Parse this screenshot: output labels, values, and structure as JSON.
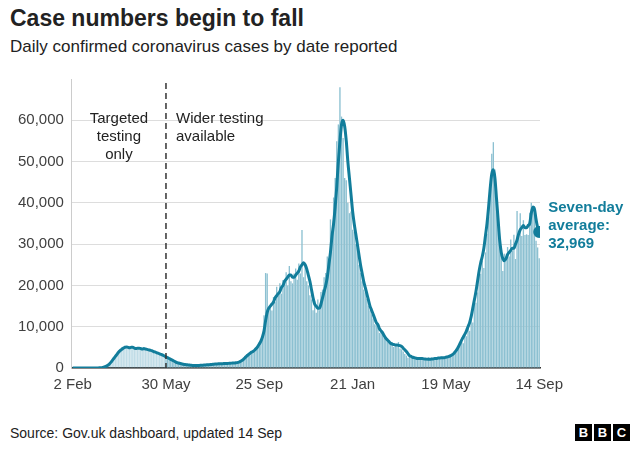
{
  "chart_data": {
    "type": "bar",
    "title": "Case numbers begin to fall",
    "subtitle": "Daily confirmed coronavirus cases by date reported",
    "source": "Source: Gov.uk dashboard, updated 14 Sep",
    "logo": "BBC",
    "categories": [
      "2 Feb",
      null,
      null,
      null,
      null,
      null,
      null,
      null,
      null,
      null,
      null,
      null,
      null,
      null,
      null,
      null,
      null,
      null,
      null,
      null,
      null,
      null,
      null,
      null,
      null,
      null,
      null,
      null,
      null,
      null,
      null,
      null,
      null,
      null,
      null,
      null,
      null,
      null,
      null,
      null,
      null,
      null,
      null,
      null,
      null,
      null,
      null,
      null,
      null,
      null,
      null,
      null,
      null,
      null,
      null,
      null,
      null,
      null,
      null,
      "30 May",
      null,
      null,
      null,
      null,
      null,
      null,
      null,
      null,
      null,
      null,
      null,
      null,
      null,
      null,
      null,
      null,
      null,
      null,
      null,
      null,
      null,
      null,
      null,
      null,
      null,
      null,
      null,
      null,
      null,
      null,
      null,
      null,
      null,
      null,
      null,
      null,
      null,
      null,
      null,
      null,
      null,
      null,
      null,
      null,
      null,
      null,
      null,
      null,
      null,
      null,
      null,
      null,
      null,
      null,
      null,
      null,
      null,
      null,
      "25 Sep",
      null,
      null,
      null,
      null,
      null,
      null,
      null,
      null,
      null,
      null,
      null,
      null,
      null,
      null,
      null,
      null,
      null,
      null,
      null,
      null,
      null,
      null,
      null,
      null,
      null,
      null,
      null,
      null,
      null,
      null,
      null,
      null,
      null,
      null,
      null,
      null,
      null,
      null,
      null,
      null,
      null,
      null,
      null,
      null,
      null,
      null,
      null,
      null,
      null,
      null,
      null,
      null,
      null,
      null,
      null,
      null,
      null,
      null,
      "21 Jan",
      null,
      null,
      null,
      null,
      null,
      null,
      null,
      null,
      null,
      null,
      null,
      null,
      null,
      null,
      null,
      null,
      null,
      null,
      null,
      null,
      null,
      null,
      null,
      null,
      null,
      null,
      null,
      null,
      null,
      null,
      null,
      null,
      null,
      null,
      null,
      null,
      null,
      null,
      null,
      null,
      null,
      null,
      null,
      null,
      null,
      null,
      null,
      null,
      null,
      null,
      null,
      null,
      null,
      null,
      null,
      null,
      null,
      null,
      "19 May",
      null,
      null,
      null,
      null,
      null,
      null,
      null,
      null,
      null,
      null,
      null,
      null,
      null,
      null,
      null,
      null,
      null,
      null,
      null,
      null,
      null,
      null,
      null,
      null,
      null,
      null,
      null,
      null,
      null,
      null,
      null,
      null,
      null,
      null,
      null,
      null,
      null,
      null,
      null,
      null,
      null,
      null,
      null,
      null,
      null,
      null,
      null,
      null,
      null,
      null,
      null,
      null,
      null,
      null,
      null,
      null,
      null,
      null,
      "14 Sep"
    ],
    "series": [
      {
        "type": "bar",
        "color": "#8cc0d1",
        "values": [
          0,
          0,
          0,
          0,
          0,
          0,
          0,
          0,
          0,
          0,
          0,
          0,
          0,
          0,
          0,
          10,
          30,
          50,
          70,
          200,
          300,
          450,
          700,
          1000,
          1500,
          2000,
          2600,
          3000,
          3700,
          4200,
          4500,
          5000,
          5200,
          5500,
          4900,
          5300,
          4700,
          5100,
          5200,
          4600,
          5000,
          4500,
          5100,
          4800,
          4500,
          4900,
          4400,
          4600,
          4300,
          4300,
          4000,
          4100,
          3700,
          3800,
          3500,
          3400,
          3200,
          3100,
          2800,
          2500,
          2600,
          2100,
          2200,
          1700,
          1800,
          1400,
          1300,
          1100,
          1200,
          900,
          1000,
          800,
          850,
          700,
          750,
          600,
          700,
          550,
          650,
          550,
          700,
          600,
          750,
          650,
          800,
          700,
          900,
          750,
          900,
          850,
          1050,
          900,
          1100,
          950,
          1150,
          1000,
          1200,
          1000,
          1200,
          1050,
          1250,
          1100,
          1300,
          1200,
          1400,
          1500,
          1900,
          2000,
          2500,
          2700,
          3300,
          3100,
          3900,
          3600,
          4300,
          4400,
          4900,
          5400,
          6200,
          7100,
          7000,
          12800,
          23000,
          22900,
          14000,
          15200,
          13900,
          17200,
          16000,
          19700,
          17500,
          20500,
          18000,
          21300,
          20900,
          23200,
          20000,
          24700,
          21000,
          20500,
          22900,
          24100,
          21400,
          25300,
          22900,
          33400,
          22000,
          25100,
          21000,
          20000,
          17600,
          16600,
          14000,
          16300,
          13400,
          16600,
          14000,
          18400,
          19000,
          22000,
          23000,
          27000,
          26500,
          36000,
          32700,
          41300,
          46000,
          54900,
          59000,
          68000,
          60900,
          55700,
          46000,
          45500,
          40000,
          37500,
          37900,
          33500,
          33000,
          30000,
          29000,
          25000,
          23000,
          21000,
          19000,
          18300,
          16800,
          15100,
          14000,
          13000,
          12000,
          10600,
          10400,
          9900,
          8500,
          9000,
          8100,
          7400,
          6900,
          6400,
          6000,
          5900,
          6300,
          5100,
          5800,
          5500,
          6300,
          4700,
          4500,
          4000,
          3400,
          3000,
          2500,
          3000,
          2400,
          2600,
          2300,
          2500,
          2100,
          2600,
          2000,
          2300,
          1900,
          2400,
          1700,
          2600,
          2000,
          2500,
          2100,
          2400,
          2200,
          2600,
          2300,
          2700,
          2400,
          2500,
          2900,
          2500,
          3100,
          2900,
          3400,
          3200,
          4200,
          4300,
          5300,
          5800,
          7400,
          6000,
          8100,
          7700,
          10300,
          9000,
          11600,
          11000,
          16100,
          15800,
          18300,
          22900,
          22800,
          26000,
          24200,
          28000,
          32500,
          36600,
          42300,
          51900,
          54700,
          48100,
          39900,
          36400,
          31100,
          29600,
          23500,
          27700,
          26700,
          29300,
          27000,
          31100,
          28400,
          32300,
          26400,
          38000,
          33000,
          37500,
          32000,
          35800,
          32200,
          32400,
          32200,
          37600,
          40000,
          38500,
          37400,
          30800,
          29200,
          26600
        ]
      },
      {
        "type": "line",
        "name": "Seven-day average:",
        "color": "#127d9b",
        "end_label": "32,969",
        "values": [
          0,
          0,
          0,
          0,
          0,
          0,
          0,
          0,
          0,
          0,
          0,
          0,
          0,
          0,
          0,
          10,
          20,
          40,
          80,
          150,
          250,
          400,
          600,
          900,
          1300,
          1800,
          2300,
          2800,
          3300,
          3800,
          4200,
          4500,
          4800,
          5000,
          5100,
          5000,
          4900,
          5000,
          5000,
          4800,
          4700,
          4800,
          4800,
          4700,
          4600,
          4700,
          4600,
          4500,
          4400,
          4300,
          4200,
          4000,
          3900,
          3700,
          3600,
          3400,
          3300,
          3100,
          2900,
          2700,
          2500,
          2300,
          2100,
          1900,
          1700,
          1500,
          1300,
          1200,
          1100,
          1000,
          900,
          850,
          800,
          750,
          700,
          650,
          630,
          620,
          600,
          600,
          620,
          650,
          680,
          700,
          750,
          780,
          800,
          820,
          850,
          900,
          950,
          950,
          1000,
          1000,
          1050,
          1050,
          1100,
          1100,
          1100,
          1150,
          1150,
          1200,
          1200,
          1250,
          1300,
          1400,
          1600,
          1800,
          2100,
          2500,
          2900,
          3200,
          3500,
          3800,
          4000,
          4300,
          4700,
          5200,
          5800,
          6500,
          7500,
          9000,
          11500,
          13500,
          14500,
          15000,
          15500,
          16000,
          17000,
          17500,
          18000,
          18500,
          19500,
          20000,
          21000,
          21500,
          22000,
          22500,
          22500,
          22000,
          22000,
          22500,
          23000,
          23500,
          24500,
          25000,
          25500,
          25000,
          24000,
          22500,
          21000,
          19000,
          17000,
          15500,
          15000,
          14500,
          14500,
          15500,
          17000,
          18500,
          20000,
          22000,
          25000,
          28000,
          32000,
          35000,
          39000,
          44000,
          50000,
          55000,
          59000,
          60000,
          58500,
          55000,
          50000,
          46000,
          42000,
          38000,
          35000,
          32500,
          30000,
          27500,
          25000,
          23000,
          21000,
          19500,
          18000,
          16500,
          15000,
          14000,
          13000,
          12000,
          11000,
          10500,
          9500,
          9000,
          8500,
          7800,
          7200,
          6800,
          6400,
          6000,
          5800,
          5700,
          5600,
          5600,
          5500,
          5400,
          5200,
          4800,
          4400,
          4000,
          3500,
          3000,
          2800,
          2600,
          2500,
          2400,
          2300,
          2300,
          2300,
          2300,
          2200,
          2200,
          2100,
          2100,
          2100,
          2200,
          2200,
          2300,
          2300,
          2400,
          2400,
          2500,
          2500,
          2500,
          2600,
          2700,
          2800,
          3000,
          3200,
          3500,
          4000,
          4500,
          5200,
          6000,
          6800,
          7500,
          8200,
          9000,
          10000,
          11000,
          12500,
          14500,
          16500,
          18500,
          21000,
          23500,
          25500,
          27000,
          29000,
          32000,
          35000,
          39000,
          43500,
          47000,
          48000,
          46000,
          41000,
          36000,
          31000,
          28000,
          26500,
          26000,
          26500,
          27500,
          28000,
          28500,
          29000,
          29000,
          30000,
          31000,
          32500,
          33500,
          34000,
          34500,
          34000,
          34000,
          34500,
          35000,
          37500,
          39000,
          38500,
          36000,
          34000,
          32969
        ]
      }
    ],
    "divider": {
      "at": "30 May",
      "before": [
        "Targeted",
        "testing",
        "only"
      ],
      "after": [
        "Wider testing",
        "available"
      ]
    },
    "ylim": [
      0,
      70000
    ],
    "yticks": [
      0,
      {
        "value": 10000,
        "label": "10,000"
      },
      {
        "value": 20000,
        "label": "20,000"
      },
      {
        "value": 30000,
        "label": "30,000"
      },
      {
        "value": 40000,
        "label": "40,000"
      },
      {
        "value": 50000,
        "label": "50,000"
      },
      {
        "value": 60000,
        "label": "60,000"
      }
    ],
    "grid": true
  }
}
